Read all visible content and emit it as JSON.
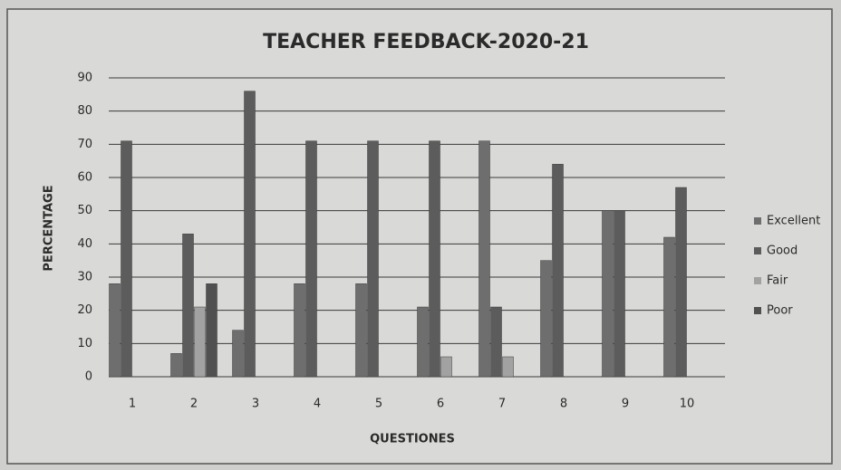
{
  "chart_data": {
    "type": "bar",
    "title": "TEACHER FEEDBACK-2020-21",
    "x_label": "QUESTIONES",
    "y_label": "PERCENTAGE",
    "categories": [
      "1",
      "2",
      "3",
      "4",
      "5",
      "6",
      "7",
      "8",
      "9",
      "10"
    ],
    "series": [
      {
        "name": "Excellent",
        "color": "#6e6e6e",
        "values": [
          28,
          7,
          14,
          28,
          28,
          21,
          71,
          35,
          50,
          42
        ]
      },
      {
        "name": "Good",
        "color": "#5c5c5c",
        "values": [
          71,
          43,
          86,
          71,
          71,
          71,
          21,
          64,
          50,
          57
        ]
      },
      {
        "name": "Fair",
        "color": "#a2a2a2",
        "values": [
          0,
          21,
          0,
          0,
          0,
          6,
          6,
          0,
          0,
          0
        ]
      },
      {
        "name": "Poor",
        "color": "#505050",
        "values": [
          0,
          28,
          0,
          0,
          0,
          0,
          0,
          0,
          0,
          0
        ]
      }
    ],
    "ylim": [
      0,
      90
    ],
    "yticks": [
      0,
      10,
      20,
      30,
      40,
      50,
      60,
      70,
      80,
      90
    ],
    "grid": true,
    "legend": "right"
  }
}
